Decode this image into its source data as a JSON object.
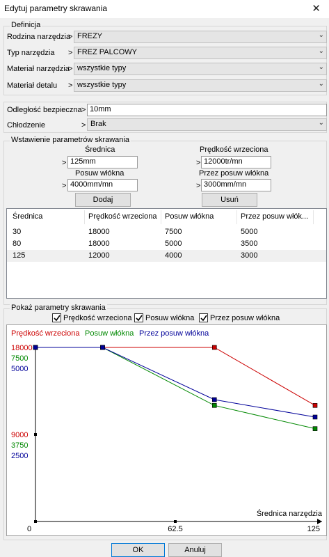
{
  "window": {
    "title": "Edytuj parametry skrawania"
  },
  "definicja": {
    "group_label": "Definicja",
    "rows": [
      {
        "label": "Rodzina narzędzia",
        "value": "FREZY"
      },
      {
        "label": "Typ narzędzia",
        "value": "FREZ PALCOWY"
      },
      {
        "label": "Materiał narzędzia",
        "value": "wszystkie typy"
      },
      {
        "label": "Materiał detalu",
        "value": "wszystkie typy"
      }
    ]
  },
  "settings": {
    "safe_distance": {
      "label": "Odległość bezpieczna",
      "value": "10mm"
    },
    "cooling": {
      "label": "Chłodzenie",
      "value": "Brak"
    }
  },
  "insert": {
    "group_label": "Wstawienie parametrów skrawania",
    "diameter": {
      "label": "Średnica",
      "value": "125mm"
    },
    "spindle": {
      "label": "Prędkość wrzeciona",
      "value": "12000tr/mn"
    },
    "feed": {
      "label": "Posuw włókna",
      "value": "4000mm/mn"
    },
    "plunge": {
      "label": "Przez posuw włókna",
      "value": "3000mm/mn"
    },
    "add_label": "Dodaj",
    "remove_label": "Usuń"
  },
  "table": {
    "columns": [
      "Średnica",
      "Prędkość wrzeciona",
      "Posuw włókna",
      "Przez posuw włók..."
    ],
    "rows": [
      [
        "30",
        "18000",
        "7500",
        "5000"
      ],
      [
        "80",
        "18000",
        "5000",
        "3500"
      ],
      [
        "125",
        "12000",
        "4000",
        "3000"
      ]
    ],
    "selected_row": 2
  },
  "show": {
    "group_label": "Pokaż parametry skrawania",
    "checkboxes": [
      {
        "label": "Prędkość wrzeciona",
        "checked": true
      },
      {
        "label": "Posuw włókna",
        "checked": true
      },
      {
        "label": "Przez posuw włókna",
        "checked": true
      }
    ]
  },
  "chart_data": {
    "type": "line",
    "xlabel": "Średnica narzędzia",
    "x_ticks": [
      "0",
      "62.5",
      "125"
    ],
    "xlim": [
      0,
      125
    ],
    "series": [
      {
        "name": "Prędkość wrzeciona",
        "color": "#cc0000",
        "x": [
          0,
          30,
          80,
          125
        ],
        "y": [
          18000,
          18000,
          18000,
          12000
        ],
        "ylim": [
          0,
          18000
        ],
        "ticks": [
          "18000",
          "9000"
        ]
      },
      {
        "name": "Posuw włókna",
        "color": "#008800",
        "x": [
          0,
          30,
          80,
          125
        ],
        "y": [
          7500,
          7500,
          5000,
          4000
        ],
        "ylim": [
          0,
          7500
        ],
        "ticks": [
          "7500",
          "3750"
        ]
      },
      {
        "name": "Przez posuw włókna",
        "color": "#000099",
        "x": [
          0,
          30,
          80,
          125
        ],
        "y": [
          5000,
          5000,
          3500,
          3000
        ],
        "ylim": [
          0,
          5000
        ],
        "ticks": [
          "5000",
          "2500"
        ]
      }
    ]
  },
  "footer": {
    "ok_label": "OK",
    "cancel_label": "Anuluj"
  }
}
